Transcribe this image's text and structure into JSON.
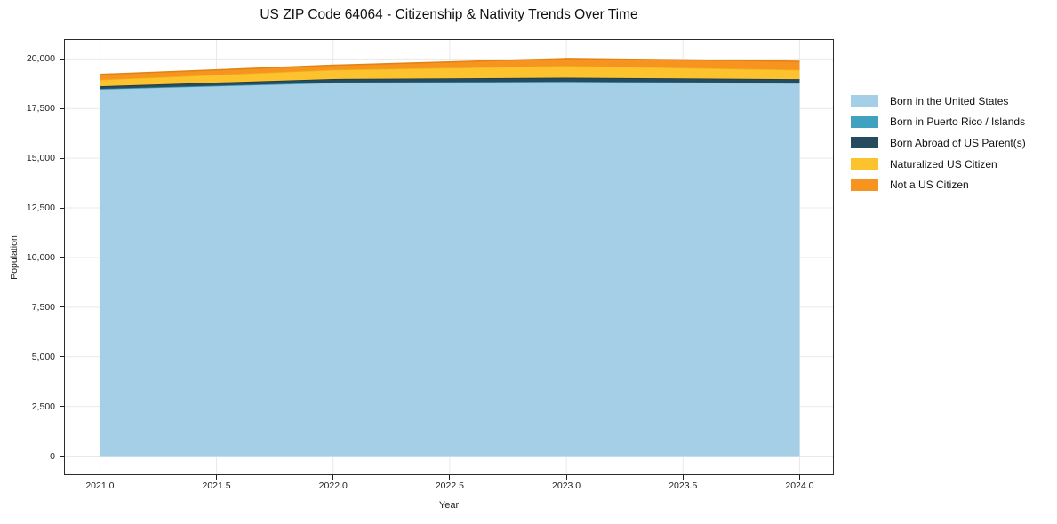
{
  "title": "US ZIP Code 64064 - Citizenship & Nativity Trends Over Time",
  "chart_data": {
    "type": "area",
    "stacked": true,
    "title": "US ZIP Code 64064 - Citizenship & Nativity Trends Over Time",
    "xlabel": "Year",
    "ylabel": "Population",
    "x": [
      2021,
      2022,
      2023,
      2024
    ],
    "series": [
      {
        "name": "Born in the United States",
        "color": "#a5cfe6",
        "edge": "#85bfdb",
        "values": [
          18480,
          18800,
          18840,
          18770
        ]
      },
      {
        "name": "Born in Puerto Rico / Islands",
        "color": "#41a1c1",
        "edge": "#338eab",
        "values": [
          15,
          15,
          20,
          20
        ]
      },
      {
        "name": "Born Abroad of US Parent(s)",
        "color": "#274b5e",
        "edge": "#1e3c4c",
        "values": [
          130,
          175,
          195,
          190
        ]
      },
      {
        "name": "Naturalized US Citizen",
        "color": "#fcc32f",
        "edge": "#ecb11a",
        "values": [
          330,
          460,
          600,
          470
        ]
      },
      {
        "name": "Not a US Citizen",
        "color": "#f7941f",
        "edge": "#e28210",
        "values": [
          265,
          230,
          365,
          430
        ]
      }
    ],
    "xlim": [
      2020.846,
      2024.147
    ],
    "ylim": [
      -960,
      21000
    ],
    "xticks": [
      2021.0,
      2021.5,
      2022.0,
      2022.5,
      2023.0,
      2023.5,
      2024.0
    ],
    "yticks": [
      0,
      2500,
      5000,
      7500,
      10000,
      12500,
      15000,
      17500,
      20000
    ],
    "grid": true,
    "grid_color": "#e9e9e9",
    "spine_color": "#2b2b2b",
    "background": "#ffffff",
    "legend_position": "right-outside"
  }
}
